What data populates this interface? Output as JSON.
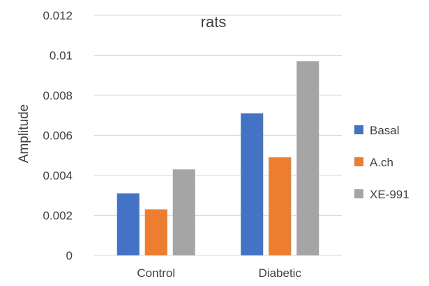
{
  "chart_data": {
    "type": "bar",
    "title": "rats",
    "xlabel": "",
    "ylabel": "Amplitude",
    "categories": [
      "Control",
      "Diabetic"
    ],
    "series": [
      {
        "name": "Basal",
        "color": "#4472C4",
        "values": [
          0.0031,
          0.0071
        ]
      },
      {
        "name": "A.ch",
        "color": "#ED7D31",
        "values": [
          0.0023,
          0.0049
        ]
      },
      {
        "name": "XE-991",
        "color": "#A5A5A5",
        "values": [
          0.0043,
          0.0097
        ]
      }
    ],
    "ylim": [
      0,
      0.012
    ],
    "yticks": [
      "0",
      "0.002",
      "0.004",
      "0.006",
      "0.008",
      "0.01",
      "0.012"
    ],
    "ytick_values": [
      0,
      0.002,
      0.004,
      0.006,
      0.008,
      0.01,
      0.012
    ],
    "grid": true,
    "legend_position": "right",
    "gridline_color": "#D9D9D9"
  }
}
